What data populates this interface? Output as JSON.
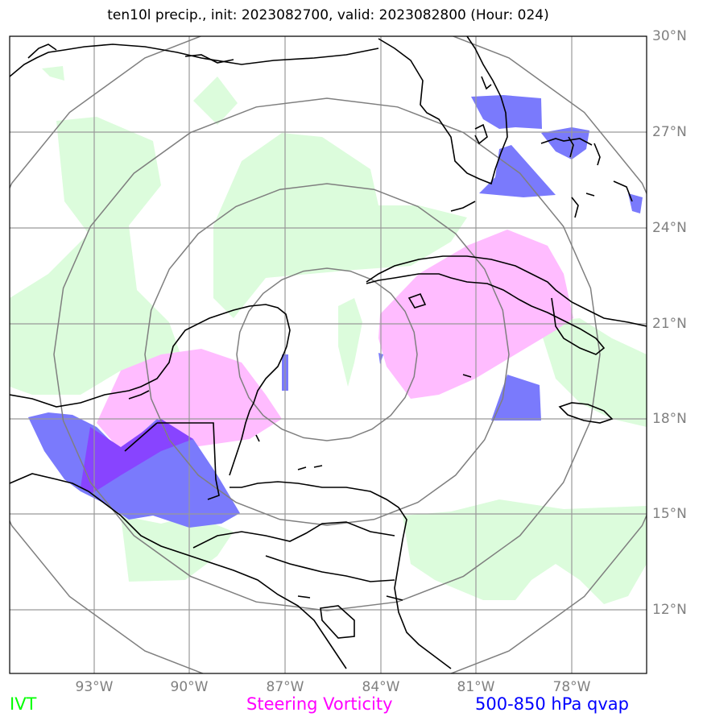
{
  "title": "ten10l precip., init: 2023082700, valid: 2023082800 (Hour: 024)",
  "lat_labels": [
    "30°N",
    "27°N",
    "24°N",
    "21°N",
    "18°N",
    "15°N",
    "12°N"
  ],
  "lon_labels": [
    "93°W",
    "90°W",
    "87°W",
    "84°W",
    "81°W",
    "78°W"
  ],
  "legend": {
    "ivt": {
      "label": "IVT",
      "color": "#00ff00"
    },
    "vorticity": {
      "label": "Steering Vorticity",
      "color": "#ff00ff"
    },
    "qvap": {
      "label": "500-850 hPa qvap",
      "color": "#0000ff"
    }
  },
  "field_colors": {
    "ivt_fill": "#dcfcdc",
    "vorticity_fill": "#ffbcff",
    "qvap_fill": "#7a7afc",
    "overlap_fill": "#8844ff",
    "gridlines": "#999999",
    "range_rings": "#7f7f7f",
    "coastlines": "#000000"
  }
}
